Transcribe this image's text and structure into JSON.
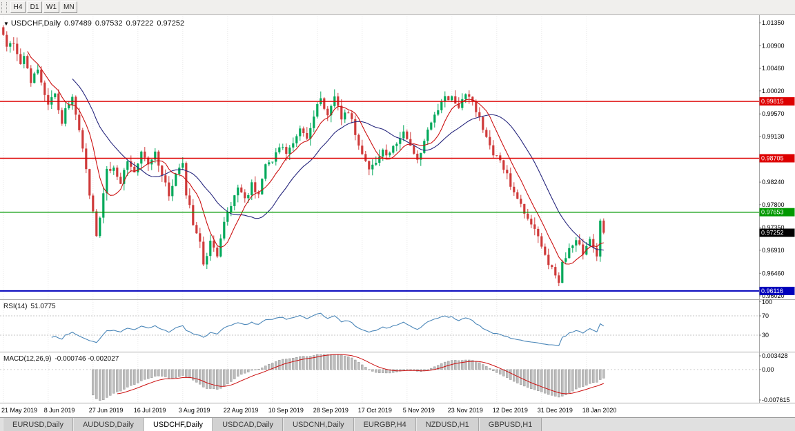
{
  "toolbar": {
    "timeframes": [
      "H4",
      "D1",
      "W1",
      "MN"
    ]
  },
  "chart": {
    "symbol_label": "USDCHF,Daily",
    "ohlc": {
      "open": "0.97489",
      "high": "0.97532",
      "low": "0.97222",
      "close": "0.97252"
    }
  },
  "price_axis": {
    "ticks": [
      "1.01350",
      "1.00900",
      "1.00460",
      "1.00020",
      "0.99570",
      "0.99130",
      "0.98240",
      "0.97800",
      "0.97350",
      "0.96910",
      "0.96460",
      "0.96020"
    ],
    "badges": [
      {
        "label": "0.99815",
        "color": "#dd0000"
      },
      {
        "label": "0.98705",
        "color": "#dd0000"
      },
      {
        "label": "0.97653",
        "color": "#009900"
      },
      {
        "label": "0.97252",
        "color": "#000000"
      },
      {
        "label": "0.96116",
        "color": "#0000bb"
      }
    ]
  },
  "rsi": {
    "label": "RSI(14)",
    "value_label": "51.0775",
    "axis": [
      {
        "t": "100",
        "v": 100,
        "line": false
      },
      {
        "t": "70",
        "v": 70,
        "line": true
      },
      {
        "t": "30",
        "v": 30,
        "line": true
      }
    ]
  },
  "macd": {
    "label": "MACD(12,26,9)",
    "values_label": "-0.000746 -0.002027",
    "axis": [
      {
        "t": "0.003428",
        "v": 0.003428
      },
      {
        "t": "0.00",
        "v": 0
      },
      {
        "t": "-0.007615",
        "v": -0.007615
      }
    ],
    "range": {
      "max": 0.003428,
      "min": -0.007615
    }
  },
  "tabs": [
    {
      "label": "EURUSD,Daily",
      "active": false
    },
    {
      "label": "AUDUSD,Daily",
      "active": false
    },
    {
      "label": "USDCHF,Daily",
      "active": true
    },
    {
      "label": "USDCAD,Daily",
      "active": false
    },
    {
      "label": "USDCNH,Daily",
      "active": false
    },
    {
      "label": "EURGBP,H4",
      "active": false
    },
    {
      "label": "NZDUSD,H1",
      "active": false
    },
    {
      "label": "GBPUSD,H1",
      "active": false
    }
  ],
  "chart_data": {
    "type": "candlestick",
    "symbol": "USDCHF",
    "timeframe": "Daily",
    "last_ohlc": {
      "open": 0.97489,
      "high": 0.97532,
      "low": 0.97222,
      "close": 0.97252
    },
    "price_range": {
      "top": 1.0135,
      "bottom": 0.9602
    },
    "num_candles": 175,
    "candles_per_label": 13,
    "x_labels": [
      "21 May 2019",
      "8 Jun 2019",
      "27 Jun 2019",
      "16 Jul 2019",
      "3 Aug 2019",
      "22 Aug 2019",
      "10 Sep 2019",
      "28 Sep 2019",
      "17 Oct 2019",
      "5 Nov 2019",
      "23 Nov 2019",
      "12 Dec 2019",
      "31 Dec 2019",
      "18 Jan 2020"
    ],
    "price_path_anchors": [
      [
        0,
        1.0118
      ],
      [
        1,
        1.0085
      ],
      [
        3,
        1.0098
      ],
      [
        5,
        1.005
      ],
      [
        6,
        1.0068
      ],
      [
        8,
        1.002
      ],
      [
        10,
        1.0045
      ],
      [
        12,
        0.9995
      ],
      [
        13,
        0.9975
      ],
      [
        15,
        0.9998
      ],
      [
        17,
        0.994
      ],
      [
        18,
        0.9965
      ],
      [
        20,
        0.9993
      ],
      [
        22,
        0.993
      ],
      [
        24,
        0.9845
      ],
      [
        26,
        0.9762
      ],
      [
        27,
        0.9718
      ],
      [
        28,
        0.976
      ],
      [
        30,
        0.9845
      ],
      [
        32,
        0.9858
      ],
      [
        34,
        0.982
      ],
      [
        36,
        0.987
      ],
      [
        38,
        0.9848
      ],
      [
        40,
        0.9878
      ],
      [
        42,
        0.9855
      ],
      [
        44,
        0.988
      ],
      [
        46,
        0.9835
      ],
      [
        48,
        0.98
      ],
      [
        50,
        0.9845
      ],
      [
        52,
        0.9855
      ],
      [
        53,
        0.98
      ],
      [
        55,
        0.9745
      ],
      [
        57,
        0.971
      ],
      [
        58,
        0.9665
      ],
      [
        60,
        0.9705
      ],
      [
        62,
        0.968
      ],
      [
        64,
        0.9745
      ],
      [
        66,
        0.978
      ],
      [
        68,
        0.9808
      ],
      [
        70,
        0.9788
      ],
      [
        72,
        0.982
      ],
      [
        74,
        0.98
      ],
      [
        76,
        0.9855
      ],
      [
        78,
        0.987
      ],
      [
        80,
        0.9898
      ],
      [
        82,
        0.9875
      ],
      [
        84,
        0.9905
      ],
      [
        86,
        0.993
      ],
      [
        88,
        0.991
      ],
      [
        90,
        0.9955
      ],
      [
        92,
        0.9985
      ],
      [
        94,
        0.996
      ],
      [
        96,
        0.999
      ],
      [
        98,
        0.9945
      ],
      [
        100,
        0.9965
      ],
      [
        102,
        0.992
      ],
      [
        104,
        0.9875
      ],
      [
        106,
        0.985
      ],
      [
        108,
        0.9865
      ],
      [
        110,
        0.989
      ],
      [
        112,
        0.9875
      ],
      [
        114,
        0.9905
      ],
      [
        116,
        0.9925
      ],
      [
        118,
        0.9895
      ],
      [
        120,
        0.9868
      ],
      [
        122,
        0.9902
      ],
      [
        124,
        0.9945
      ],
      [
        126,
        0.9965
      ],
      [
        128,
        0.9985
      ],
      [
        130,
        0.9988
      ],
      [
        132,
        0.9965
      ],
      [
        134,
        0.9995
      ],
      [
        136,
        0.9985
      ],
      [
        138,
        0.995
      ],
      [
        140,
        0.991
      ],
      [
        142,
        0.988
      ],
      [
        144,
        0.987
      ],
      [
        146,
        0.9835
      ],
      [
        148,
        0.98
      ],
      [
        150,
        0.9775
      ],
      [
        152,
        0.9752
      ],
      [
        154,
        0.973
      ],
      [
        156,
        0.97
      ],
      [
        158,
        0.9668
      ],
      [
        160,
        0.9648
      ],
      [
        161,
        0.963
      ],
      [
        162,
        0.9665
      ],
      [
        164,
        0.969
      ],
      [
        166,
        0.9705
      ],
      [
        168,
        0.9688
      ],
      [
        170,
        0.971
      ],
      [
        171,
        0.9695
      ],
      [
        172,
        0.9685
      ],
      [
        173,
        0.97489
      ],
      [
        174,
        0.97252
      ]
    ],
    "hlines": [
      {
        "name": "resistance-1",
        "price": 0.99815,
        "color": "#dd0000",
        "width": 1.4
      },
      {
        "name": "resistance-2",
        "price": 0.98705,
        "color": "#dd0000",
        "width": 1.4
      },
      {
        "name": "support-green",
        "price": 0.97653,
        "color": "#009900",
        "width": 1.4
      },
      {
        "name": "support-blue",
        "price": 0.96116,
        "color": "#0000bb",
        "width": 2
      }
    ],
    "indicators": [
      {
        "name": "RSI",
        "period": 14,
        "last_value": 51.0775,
        "levels": [
          70,
          30
        ]
      },
      {
        "name": "MACD",
        "fast": 12,
        "slow": 26,
        "signal": 9,
        "last_values": [
          -0.000746,
          -0.002027
        ]
      }
    ],
    "colors": {
      "candle_up": "#00a85a",
      "candle_down": "#cf3a3a",
      "ma_fast": "#cc1111",
      "ma_slow": "#26267d",
      "rsi_line": "#4a86b8",
      "macd_histogram": "#bdbdbd",
      "macd_signal": "#cc1111"
    }
  }
}
